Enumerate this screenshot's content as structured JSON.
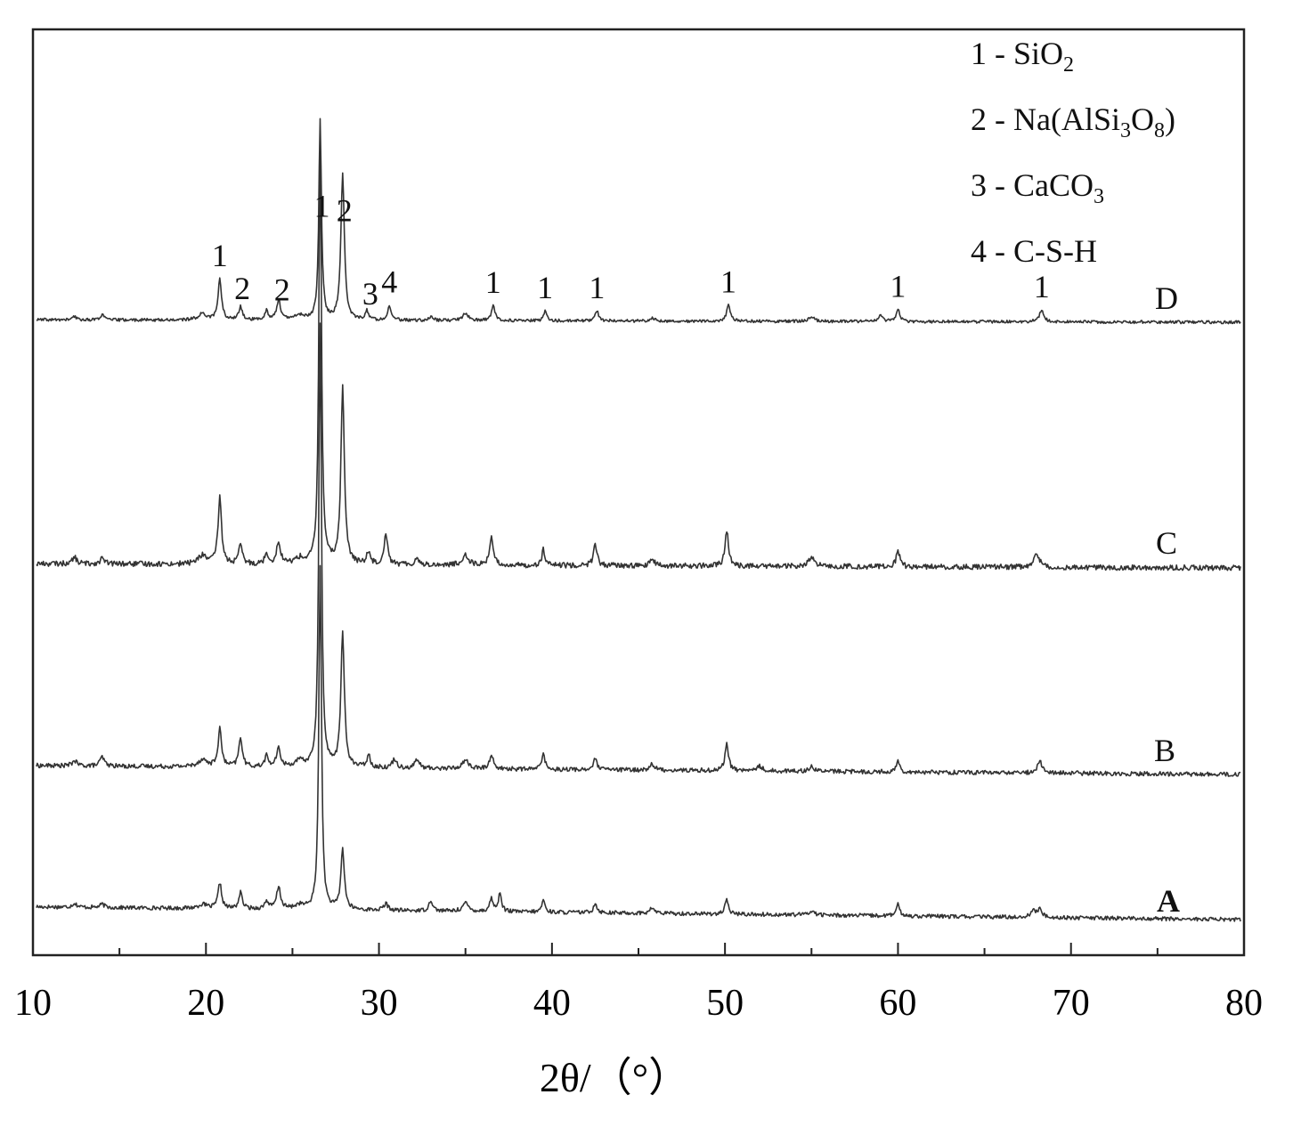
{
  "chart_data": {
    "type": "line",
    "title": "",
    "xlabel": "2θ/（°）",
    "ylabel": "",
    "xlim": [
      10,
      80
    ],
    "xticks": [
      10,
      20,
      30,
      40,
      50,
      60,
      70,
      80
    ],
    "grid": false,
    "y_ticks_shown": false,
    "legend": {
      "placement": "top-right",
      "entries": [
        {
          "number": "1",
          "sep": " - ",
          "formula": [
            {
              "t": "SiO"
            },
            {
              "t": "2",
              "sub": true
            }
          ]
        },
        {
          "number": "2",
          "sep": " - ",
          "formula": [
            {
              "t": "Na(AlSi"
            },
            {
              "t": "3",
              "sub": true
            },
            {
              "t": "O"
            },
            {
              "t": "8",
              "sub": true
            },
            {
              "t": ")"
            }
          ]
        },
        {
          "number": "3",
          "sep": " - ",
          "formula": [
            {
              "t": "CaCO"
            },
            {
              "t": "3",
              "sub": true
            }
          ]
        },
        {
          "number": "4",
          "sep": " - ",
          "formula": [
            {
              "t": "C-S-H"
            }
          ]
        }
      ]
    },
    "series": [
      {
        "name": "A",
        "bold_label": true,
        "baseline_start": 0.16,
        "baseline_end": 0.0,
        "peaks": [
          [
            12.4,
            0.05,
            0.15
          ],
          [
            14.0,
            0.04,
            0.15
          ],
          [
            19.8,
            0.05,
            0.3
          ],
          [
            20.8,
            0.32,
            0.12
          ],
          [
            22.0,
            0.2,
            0.12
          ],
          [
            23.5,
            0.1,
            0.12
          ],
          [
            24.2,
            0.27,
            0.14
          ],
          [
            25.4,
            0.05,
            0.3
          ],
          [
            26.6,
            4.3,
            0.09
          ],
          [
            27.9,
            0.75,
            0.12
          ],
          [
            30.4,
            0.08,
            0.15
          ],
          [
            33.0,
            0.14,
            0.12
          ],
          [
            35.0,
            0.1,
            0.2
          ],
          [
            36.5,
            0.16,
            0.12
          ],
          [
            37.0,
            0.24,
            0.1
          ],
          [
            39.5,
            0.16,
            0.1
          ],
          [
            42.5,
            0.12,
            0.12
          ],
          [
            45.8,
            0.07,
            0.15
          ],
          [
            50.1,
            0.17,
            0.12
          ],
          [
            55.0,
            0.05,
            0.2
          ],
          [
            60.0,
            0.14,
            0.12
          ],
          [
            67.8,
            0.09,
            0.15
          ],
          [
            68.2,
            0.1,
            0.15
          ]
        ]
      },
      {
        "name": "B",
        "bold_label": false,
        "baseline_start": 0.1,
        "baseline_end": 0.0,
        "peaks": [
          [
            12.4,
            0.06,
            0.15
          ],
          [
            14.0,
            0.1,
            0.15
          ],
          [
            19.8,
            0.08,
            0.3
          ],
          [
            20.8,
            0.42,
            0.12
          ],
          [
            22.0,
            0.33,
            0.12
          ],
          [
            23.5,
            0.12,
            0.12
          ],
          [
            24.2,
            0.2,
            0.14
          ],
          [
            25.4,
            0.06,
            0.3
          ],
          [
            26.6,
            5.0,
            0.09
          ],
          [
            27.9,
            1.5,
            0.12
          ],
          [
            29.4,
            0.14,
            0.12
          ],
          [
            30.9,
            0.1,
            0.15
          ],
          [
            32.2,
            0.1,
            0.15
          ],
          [
            35.0,
            0.1,
            0.2
          ],
          [
            36.5,
            0.17,
            0.12
          ],
          [
            39.5,
            0.2,
            0.1
          ],
          [
            42.5,
            0.12,
            0.12
          ],
          [
            45.8,
            0.07,
            0.15
          ],
          [
            50.1,
            0.31,
            0.12
          ],
          [
            52.0,
            0.05,
            0.2
          ],
          [
            55.0,
            0.05,
            0.2
          ],
          [
            60.0,
            0.12,
            0.12
          ],
          [
            68.2,
            0.14,
            0.15
          ]
        ]
      },
      {
        "name": "C",
        "bold_label": false,
        "baseline_start": 0.04,
        "baseline_end": 0.0,
        "peaks": [
          [
            12.4,
            0.06,
            0.15
          ],
          [
            14.0,
            0.05,
            0.15
          ],
          [
            19.8,
            0.08,
            0.3
          ],
          [
            20.8,
            0.62,
            0.12
          ],
          [
            22.0,
            0.18,
            0.12
          ],
          [
            23.5,
            0.1,
            0.12
          ],
          [
            24.2,
            0.2,
            0.14
          ],
          [
            25.4,
            0.05,
            0.3
          ],
          [
            26.6,
            3.9,
            0.09
          ],
          [
            27.9,
            1.65,
            0.12
          ],
          [
            29.4,
            0.12,
            0.12
          ],
          [
            30.4,
            0.3,
            0.12
          ],
          [
            32.2,
            0.06,
            0.15
          ],
          [
            35.0,
            0.1,
            0.2
          ],
          [
            36.5,
            0.28,
            0.12
          ],
          [
            39.5,
            0.15,
            0.1
          ],
          [
            42.5,
            0.2,
            0.12
          ],
          [
            45.8,
            0.06,
            0.15
          ],
          [
            50.1,
            0.33,
            0.12
          ],
          [
            55.0,
            0.08,
            0.2
          ],
          [
            60.0,
            0.15,
            0.12
          ],
          [
            68.0,
            0.13,
            0.2
          ]
        ]
      },
      {
        "name": "D",
        "bold_label": false,
        "baseline_start": 0.04,
        "baseline_end": 0.0,
        "peaks": [
          [
            12.4,
            0.05,
            0.15
          ],
          [
            14.0,
            0.08,
            0.15
          ],
          [
            19.8,
            0.1,
            0.3
          ],
          [
            20.8,
            0.67,
            0.12
          ],
          [
            22.0,
            0.22,
            0.12
          ],
          [
            23.5,
            0.15,
            0.12
          ],
          [
            24.2,
            0.32,
            0.14
          ],
          [
            25.4,
            0.08,
            0.3
          ],
          [
            26.6,
            3.3,
            0.09
          ],
          [
            27.9,
            2.4,
            0.12
          ],
          [
            29.3,
            0.15,
            0.12
          ],
          [
            30.6,
            0.25,
            0.12
          ],
          [
            33.0,
            0.06,
            0.15
          ],
          [
            35.0,
            0.12,
            0.2
          ],
          [
            36.6,
            0.25,
            0.12
          ],
          [
            39.6,
            0.17,
            0.1
          ],
          [
            42.6,
            0.17,
            0.12
          ],
          [
            45.8,
            0.06,
            0.15
          ],
          [
            50.2,
            0.27,
            0.12
          ],
          [
            55.0,
            0.07,
            0.2
          ],
          [
            59.0,
            0.1,
            0.15
          ],
          [
            60.0,
            0.2,
            0.12
          ],
          [
            68.3,
            0.2,
            0.15
          ]
        ]
      }
    ],
    "peak_labels": [
      {
        "series": "D",
        "x": 20.8,
        "text": "1"
      },
      {
        "series": "D",
        "x": 22.1,
        "text": "2"
      },
      {
        "series": "D",
        "x": 24.4,
        "text": "2"
      },
      {
        "series": "D",
        "x": 26.7,
        "text": "1"
      },
      {
        "series": "D",
        "x": 28.0,
        "text": "2"
      },
      {
        "series": "D",
        "x": 29.5,
        "text": "3"
      },
      {
        "series": "D",
        "x": 30.6,
        "text": "4"
      },
      {
        "series": "D",
        "x": 36.6,
        "text": "1"
      },
      {
        "series": "D",
        "x": 39.6,
        "text": "1"
      },
      {
        "series": "D",
        "x": 42.6,
        "text": "1"
      },
      {
        "series": "D",
        "x": 50.2,
        "text": "1"
      },
      {
        "series": "D",
        "x": 60.0,
        "text": "1"
      },
      {
        "series": "D",
        "x": 68.3,
        "text": "1"
      }
    ]
  }
}
